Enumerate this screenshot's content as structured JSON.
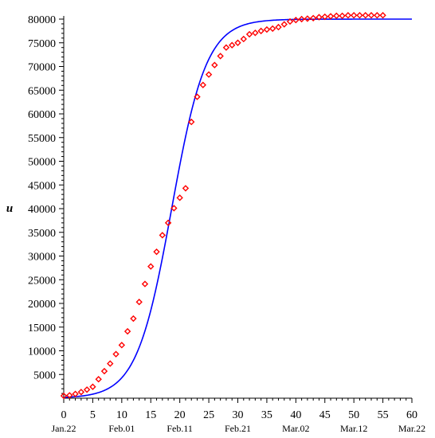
{
  "chart_data": {
    "type": "scatter",
    "ylabel": "u",
    "xlabel": "",
    "xlim": [
      0,
      60
    ],
    "ylim": [
      0,
      80000
    ],
    "x_ticks": [
      0,
      5,
      10,
      15,
      20,
      25,
      30,
      35,
      40,
      45,
      50,
      55,
      60
    ],
    "y_ticks": [
      5000,
      10000,
      15000,
      20000,
      25000,
      30000,
      35000,
      40000,
      45000,
      50000,
      55000,
      60000,
      65000,
      70000,
      75000,
      80000
    ],
    "date_ticks": [
      {
        "x": 0,
        "label": "Jan.22"
      },
      {
        "x": 10,
        "label": "Feb.01"
      },
      {
        "x": 20,
        "label": "Feb.11"
      },
      {
        "x": 30,
        "label": "Feb.21"
      },
      {
        "x": 40,
        "label": "Mar.02"
      },
      {
        "x": 50,
        "label": "Mar.12"
      },
      {
        "x": 60,
        "label": "Mar.22"
      }
    ],
    "grid": false,
    "series": [
      {
        "kind": "points",
        "marker": "diamond",
        "color": "#ff0000",
        "x": [
          0,
          1,
          2,
          3,
          4,
          5,
          6,
          7,
          8,
          9,
          10,
          11,
          12,
          13,
          14,
          15,
          16,
          17,
          18,
          19,
          20,
          21,
          22,
          23,
          24,
          25,
          26,
          27,
          28,
          29,
          30,
          31,
          32,
          33,
          34,
          35,
          36,
          37,
          38,
          39,
          40,
          41,
          42,
          43,
          44,
          45,
          46,
          47,
          48,
          49,
          50,
          51,
          52,
          53,
          54,
          55
        ],
        "y": [
          500,
          600,
          900,
          1300,
          1800,
          2400,
          4000,
          5700,
          7300,
          9300,
          11200,
          14100,
          16800,
          20300,
          24100,
          27800,
          30900,
          34400,
          37000,
          40100,
          42300,
          44300,
          58300,
          63600,
          66100,
          68300,
          70300,
          72200,
          74000,
          74500,
          75000,
          75800,
          76800,
          77100,
          77500,
          77800,
          78000,
          78300,
          78900,
          79500,
          79800,
          80000,
          80100,
          80200,
          80400,
          80500,
          80600,
          80700,
          80700,
          80800,
          80800,
          80800,
          80800,
          80800,
          80800,
          80800
        ]
      },
      {
        "kind": "curve",
        "color": "#0000ff",
        "model": "logistic",
        "K": 80000,
        "x_mid": 18.6,
        "scale": 3.0,
        "x_range": [
          0,
          60
        ]
      }
    ]
  }
}
